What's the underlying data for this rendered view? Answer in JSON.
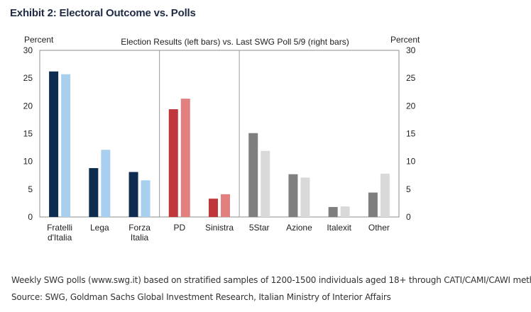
{
  "exhibit_title": "Exhibit 2: Electoral Outcome vs. Polls",
  "footnote": "Weekly SWG polls (www.swg.it) based on stratified samples of 1200-1500 individuals aged 18+ through CATI/CAMI/CAWI method.",
  "source": "Source: SWG, Goldman Sachs Global Investment Research, Italian Ministry of Interior Affairs",
  "chart_data": {
    "type": "bar",
    "title": "Election Results (left bars) vs. Last SWG Poll 5/9 (right bars)",
    "ylabel_left": "Percent",
    "ylabel_right": "Percent",
    "ylim": [
      0,
      30
    ],
    "yticks": [
      0,
      5,
      10,
      15,
      20,
      25,
      30
    ],
    "grid": false,
    "categories": [
      {
        "lines": [
          "Fratelli",
          "d'Italia"
        ]
      },
      {
        "lines": [
          "Lega"
        ]
      },
      {
        "lines": [
          "Forza",
          "Italia"
        ]
      },
      {
        "lines": [
          "PD"
        ]
      },
      {
        "lines": [
          "Sinistra"
        ]
      },
      {
        "lines": [
          "5Star"
        ]
      },
      {
        "lines": [
          "Azione"
        ]
      },
      {
        "lines": [
          "Italexit"
        ]
      },
      {
        "lines": [
          "Other"
        ]
      }
    ],
    "group_dividers_after": [
      2,
      4
    ],
    "series": [
      {
        "values": [
          26.2,
          8.8,
          8.1,
          19.4,
          3.3,
          15.1,
          7.7,
          1.8,
          4.4
        ],
        "colors": [
          "#0d2c4f",
          "#0d2c4f",
          "#0d2c4f",
          "#c0373b",
          "#c0373b",
          "#7f7f7f",
          "#7f7f7f",
          "#7f7f7f",
          "#7f7f7f"
        ]
      },
      {
        "values": [
          25.7,
          12.1,
          6.6,
          21.3,
          4.1,
          11.9,
          7.1,
          1.9,
          7.8
        ],
        "colors": [
          "#a8d0ee",
          "#a8d0ee",
          "#a8d0ee",
          "#e28080",
          "#e28080",
          "#d9d9d9",
          "#d9d9d9",
          "#d9d9d9",
          "#d9d9d9"
        ]
      }
    ]
  }
}
